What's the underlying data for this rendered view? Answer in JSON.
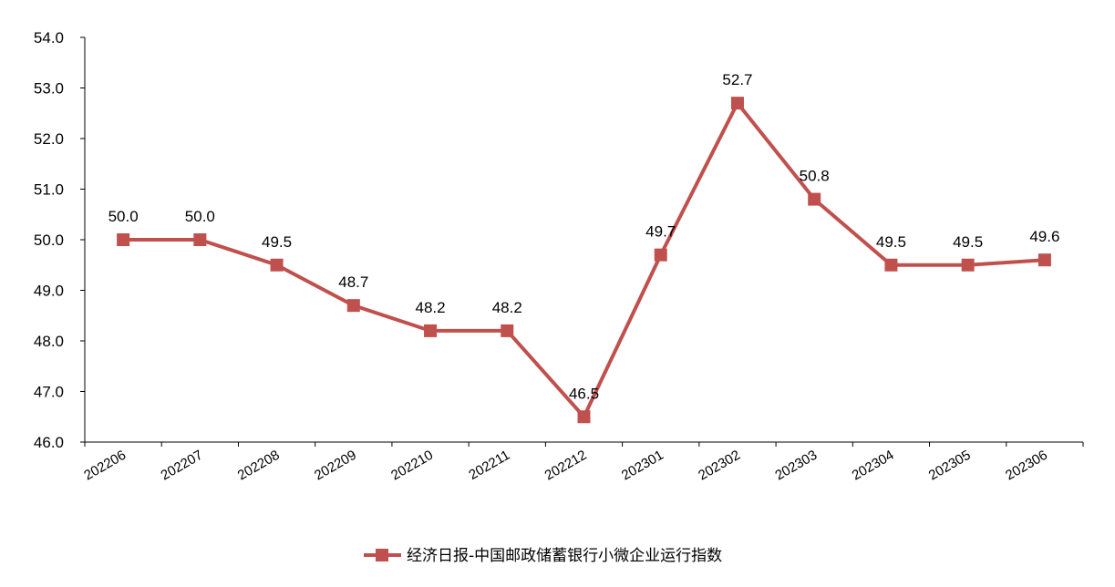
{
  "chart_data": {
    "type": "line",
    "categories": [
      "202206",
      "202207",
      "202208",
      "202209",
      "202210",
      "202211",
      "202212",
      "202301",
      "202302",
      "202303",
      "202304",
      "202305",
      "202306"
    ],
    "series": [
      {
        "name": "经济日报-中国邮政储蓄银行小微企业运行指数",
        "values": [
          50.0,
          50.0,
          49.5,
          48.7,
          48.2,
          48.2,
          46.5,
          49.7,
          52.7,
          50.8,
          49.5,
          49.5,
          49.6
        ],
        "labels": [
          "50.0",
          "50.0",
          "49.5",
          "48.7",
          "48.2",
          "48.2",
          "46.5",
          "49.7",
          "52.7",
          "50.8",
          "49.5",
          "49.5",
          "49.6"
        ],
        "color": "#C0504D",
        "marker": "square"
      }
    ],
    "yticks": [
      "46.0",
      "47.0",
      "48.0",
      "49.0",
      "50.0",
      "51.0",
      "52.0",
      "53.0",
      "54.0"
    ],
    "ylim": [
      46.0,
      54.0
    ],
    "title": "",
    "xlabel": "",
    "ylabel": "",
    "grid": false,
    "legend_position": "bottom"
  }
}
